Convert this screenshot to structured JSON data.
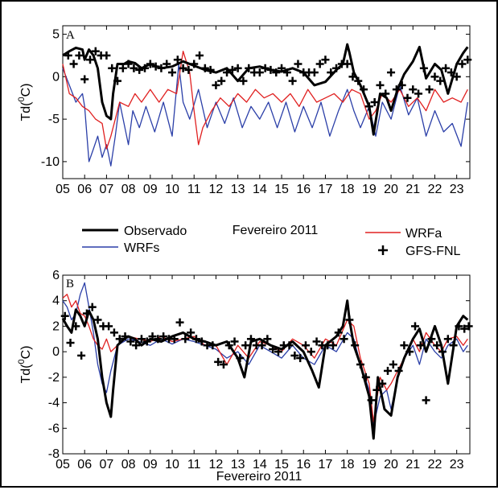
{
  "chart_data": [
    {
      "type": "line",
      "panel_label": "A",
      "xlabel": "Fevereiro 2011",
      "ylabel_main": "Td(",
      "ylabel_sup": "0",
      "ylabel_unit": "C)",
      "x_ticks": [
        "05",
        "06",
        "07",
        "08",
        "09",
        "10",
        "11",
        "12",
        "13",
        "14",
        "15",
        "16",
        "17",
        "18",
        "19",
        "20",
        "21",
        "22",
        "23"
      ],
      "xlim": [
        5,
        23.6
      ],
      "ylim": [
        -12,
        6
      ],
      "y_ticks": [
        5,
        0,
        -5,
        -10
      ],
      "y_tick_labels": [
        "5",
        "0",
        "-5",
        "-10"
      ],
      "series": [
        {
          "name": "Observado",
          "color": "#000000",
          "x": [
            5.0,
            5.3,
            5.6,
            5.9,
            6.0,
            6.2,
            6.4,
            6.6,
            6.8,
            7.0,
            7.2,
            7.3,
            7.5,
            7.8,
            8.0,
            8.3,
            8.6,
            9.0,
            9.5,
            10.0,
            10.5,
            11.0,
            11.5,
            12.0,
            12.5,
            13.0,
            13.5,
            14.0,
            14.5,
            15.0,
            15.5,
            16.0,
            16.5,
            17.0,
            17.5,
            17.8,
            18.0,
            18.1,
            18.3,
            18.6,
            19.0,
            19.2,
            19.5,
            19.8,
            20.0,
            20.3,
            20.6,
            21.0,
            21.3,
            21.6,
            22.0,
            22.3,
            22.6,
            23.0,
            23.3,
            23.5
          ],
          "y": [
            2.5,
            3.0,
            3.4,
            3.2,
            2.0,
            3.2,
            2.5,
            1.0,
            -3.0,
            -4.6,
            -5.0,
            -2.0,
            1.5,
            1.5,
            1.8,
            1.6,
            1.0,
            1.5,
            1.0,
            1.2,
            1.8,
            1.3,
            0.8,
            0.5,
            1.0,
            -0.5,
            1.0,
            1.2,
            0.8,
            0.6,
            1.0,
            0.5,
            -1.0,
            -0.6,
            0.8,
            1.5,
            3.8,
            2.8,
            0.5,
            -1.0,
            -3.5,
            -6.8,
            -2.0,
            -2.5,
            -4.0,
            -1.5,
            0.3,
            1.8,
            3.5,
            -0.2,
            1.5,
            0.8,
            -2.0,
            1.5,
            2.8,
            3.5
          ]
        },
        {
          "name": "WRFs",
          "color": "#2b3fa8",
          "x": [
            5.0,
            5.3,
            5.6,
            5.9,
            6.0,
            6.2,
            6.4,
            6.6,
            6.8,
            7.0,
            7.2,
            7.4,
            7.6,
            8.0,
            8.2,
            8.5,
            8.8,
            9.2,
            9.6,
            10.0,
            10.3,
            10.5,
            10.8,
            11.2,
            11.6,
            12.0,
            12.4,
            12.8,
            13.2,
            13.6,
            14.0,
            14.4,
            14.8,
            15.2,
            15.6,
            16.0,
            16.4,
            16.8,
            17.2,
            17.6,
            18.0,
            18.3,
            18.6,
            19.0,
            19.3,
            19.6,
            20.0,
            20.4,
            20.8,
            21.2,
            21.6,
            22.0,
            22.4,
            22.8,
            23.2,
            23.5
          ],
          "y": [
            1.0,
            -1.0,
            -3.0,
            -2.0,
            -3.5,
            -10.0,
            -8.5,
            -7.0,
            -9.5,
            -8.0,
            -10.5,
            -7.0,
            -3.0,
            -8.0,
            -4.0,
            -6.0,
            -3.5,
            -6.5,
            -3.0,
            -7.0,
            1.5,
            -3.0,
            -5.0,
            -1.5,
            -6.0,
            -3.0,
            -5.5,
            -2.5,
            -6.0,
            -3.5,
            -5.0,
            -3.0,
            -6.0,
            -3.0,
            -6.5,
            -3.5,
            -6.0,
            -3.0,
            -7.0,
            -4.0,
            -1.5,
            -4.0,
            -6.0,
            -3.5,
            -7.0,
            -3.0,
            -5.0,
            -1.0,
            -4.5,
            -2.5,
            -7.0,
            -4.0,
            -6.5,
            -5.5,
            -8.2,
            -3.0
          ]
        },
        {
          "name": "WRFa",
          "color": "#e02020",
          "x": [
            5.0,
            5.3,
            5.6,
            5.9,
            6.2,
            6.5,
            6.8,
            7.0,
            7.2,
            7.4,
            7.6,
            8.0,
            8.3,
            8.6,
            9.0,
            9.4,
            9.8,
            10.2,
            10.5,
            10.8,
            11.0,
            11.2,
            11.4,
            11.8,
            12.2,
            12.6,
            13.0,
            13.4,
            13.8,
            14.2,
            14.6,
            15.0,
            15.4,
            15.8,
            16.2,
            16.6,
            17.0,
            17.4,
            17.8,
            18.2,
            18.6,
            19.0,
            19.3,
            19.6,
            20.0,
            20.4,
            20.8,
            21.2,
            21.6,
            22.0,
            22.4,
            22.8,
            23.2,
            23.5
          ],
          "y": [
            1.5,
            -2.0,
            -2.5,
            -3.5,
            -4.0,
            -5.0,
            -5.5,
            -8.5,
            -7.0,
            -5.0,
            -3.0,
            -3.5,
            -2.0,
            -3.0,
            -1.5,
            -3.0,
            -1.5,
            -2.0,
            3.0,
            0.5,
            -4.0,
            -8.0,
            -6.0,
            -4.0,
            -2.5,
            -3.5,
            -2.0,
            -3.0,
            -1.5,
            -2.5,
            -2.0,
            -3.0,
            -2.0,
            -3.5,
            -1.5,
            -3.0,
            -2.5,
            -2.0,
            -3.0,
            -1.5,
            -2.0,
            -5.0,
            -4.0,
            -2.0,
            -3.0,
            -1.5,
            -3.5,
            -2.5,
            -4.0,
            -1.5,
            -3.0,
            -2.5,
            -3.0,
            -1.5
          ]
        },
        {
          "name": "GFS-FNL",
          "color": "#000000",
          "marker": "+",
          "x": [
            5.25,
            5.5,
            5.75,
            6.0,
            6.25,
            6.5,
            6.75,
            7.0,
            7.25,
            7.5,
            7.75,
            8.0,
            8.25,
            8.5,
            8.75,
            9.0,
            9.25,
            9.5,
            9.75,
            10.0,
            10.25,
            10.5,
            10.75,
            11.0,
            11.25,
            11.5,
            11.75,
            12.0,
            12.25,
            12.5,
            12.75,
            13.0,
            13.25,
            13.5,
            13.75,
            14.0,
            14.25,
            14.5,
            14.75,
            15.0,
            15.25,
            15.5,
            15.75,
            16.0,
            16.25,
            16.5,
            16.75,
            17.0,
            17.25,
            17.5,
            17.75,
            18.0,
            18.25,
            18.5,
            18.75,
            19.0,
            19.25,
            19.5,
            19.75,
            20.0,
            20.25,
            20.5,
            20.75,
            21.0,
            21.25,
            21.5,
            21.75,
            22.0,
            22.25,
            22.5,
            22.75,
            23.0,
            23.25,
            23.5
          ],
          "y": [
            2.5,
            1.5,
            2.5,
            -0.3,
            2.0,
            3.0,
            2.5,
            2.5,
            1.0,
            -0.5,
            1.0,
            1.5,
            1.0,
            0.8,
            1.0,
            1.5,
            1.2,
            1.0,
            1.5,
            0.5,
            2.0,
            1.0,
            0.8,
            1.5,
            2.5,
            1.0,
            0.8,
            -1.0,
            -0.5,
            0.5,
            0.8,
            1.0,
            -0.5,
            1.0,
            0.5,
            0.5,
            1.0,
            0.8,
            0.5,
            1.0,
            0.5,
            -0.5,
            1.5,
            0.5,
            0.5,
            0.5,
            1.5,
            2.0,
            0.5,
            1.0,
            1.5,
            1.5,
            0.0,
            -0.5,
            -1.5,
            -3.5,
            -3.0,
            -1.0,
            -2.0,
            0.5,
            -1.5,
            -1.0,
            -2.5,
            -1.5,
            -2.0,
            1.0,
            -1.5,
            0.0,
            -0.5,
            1.0,
            0.5,
            0.0,
            1.5,
            2.0
          ]
        }
      ]
    },
    {
      "type": "line",
      "panel_label": "B",
      "xlabel": "Fevereiro 2011",
      "ylabel_main": "Td(",
      "ylabel_sup": "0",
      "ylabel_unit": "C)",
      "x_ticks": [
        "05",
        "06",
        "07",
        "08",
        "09",
        "10",
        "11",
        "12",
        "13",
        "14",
        "15",
        "16",
        "17",
        "18",
        "19",
        "20",
        "21",
        "22",
        "23"
      ],
      "xlim": [
        5,
        23.6
      ],
      "ylim": [
        -8,
        6
      ],
      "y_ticks": [
        6,
        4,
        2,
        0,
        -2,
        -4,
        -6,
        -8
      ],
      "y_tick_labels": [
        "6",
        "4",
        "2",
        "0",
        "-2",
        "-4",
        "-6",
        "-8"
      ],
      "series": [
        {
          "name": "Observado",
          "color": "#000000",
          "x": [
            5.0,
            5.2,
            5.4,
            5.6,
            5.8,
            6.0,
            6.2,
            6.4,
            6.6,
            6.8,
            7.0,
            7.2,
            7.3,
            7.5,
            7.8,
            8.0,
            8.3,
            8.6,
            9.0,
            9.5,
            10.0,
            10.5,
            11.0,
            11.5,
            12.0,
            12.5,
            13.0,
            13.3,
            13.6,
            14.0,
            14.5,
            15.0,
            15.5,
            16.0,
            16.4,
            16.7,
            17.0,
            17.5,
            17.8,
            18.0,
            18.1,
            18.3,
            18.6,
            19.0,
            19.2,
            19.4,
            19.7,
            20.0,
            20.3,
            20.6,
            21.0,
            21.3,
            21.6,
            22.0,
            22.3,
            22.6,
            23.0,
            23.3,
            23.5
          ],
          "y": [
            2.6,
            2.0,
            1.5,
            3.3,
            2.8,
            2.0,
            3.2,
            2.5,
            1.0,
            -2.0,
            -4.0,
            -5.1,
            -3.0,
            0.5,
            1.0,
            1.2,
            1.0,
            0.5,
            1.0,
            0.8,
            1.2,
            1.5,
            1.0,
            0.8,
            0.5,
            0.8,
            -0.5,
            -2.0,
            0.8,
            1.0,
            0.5,
            0.2,
            0.8,
            0.0,
            -1.5,
            -2.8,
            0.5,
            1.2,
            2.0,
            4.0,
            2.5,
            0.5,
            -1.0,
            -3.5,
            -6.8,
            -2.0,
            -4.5,
            -5.0,
            -2.0,
            -0.5,
            1.0,
            1.8,
            0.0,
            2.0,
            0.5,
            -2.5,
            2.0,
            2.8,
            2.5
          ]
        },
        {
          "name": "WRFs",
          "color": "#2b3fa8",
          "x": [
            5.0,
            5.2,
            5.4,
            5.6,
            5.8,
            6.0,
            6.2,
            6.4,
            6.6,
            6.8,
            7.0,
            7.2,
            7.5,
            8.0,
            8.5,
            9.0,
            9.5,
            10.0,
            10.5,
            11.0,
            11.5,
            12.0,
            12.5,
            13.0,
            13.5,
            14.0,
            14.5,
            15.0,
            15.5,
            16.0,
            16.5,
            17.0,
            17.5,
            18.0,
            18.3,
            18.6,
            19.0,
            19.2,
            19.5,
            19.8,
            20.0,
            20.3,
            20.6,
            21.0,
            21.3,
            21.6,
            22.0,
            22.3,
            22.6,
            23.0,
            23.3,
            23.5
          ],
          "y": [
            4.0,
            3.5,
            2.5,
            3.0,
            4.5,
            5.4,
            3.5,
            1.5,
            -1.0,
            -2.5,
            -3.2,
            -1.5,
            0.5,
            1.0,
            0.8,
            0.5,
            1.0,
            0.6,
            1.0,
            0.8,
            0.5,
            0.2,
            -0.5,
            0.0,
            -1.0,
            0.5,
            0.0,
            -0.5,
            0.5,
            -0.5,
            -1.0,
            0.5,
            0.0,
            1.5,
            1.0,
            -1.0,
            -3.0,
            -5.8,
            -3.5,
            -3.0,
            -4.5,
            -2.0,
            -0.5,
            0.5,
            -1.0,
            1.0,
            0.0,
            -0.5,
            0.5,
            1.0,
            0.0,
            0.5
          ]
        },
        {
          "name": "WRFa",
          "color": "#e02020",
          "x": [
            5.0,
            5.2,
            5.4,
            5.6,
            5.8,
            6.0,
            6.2,
            6.4,
            6.6,
            6.8,
            7.0,
            7.2,
            7.5,
            8.0,
            8.5,
            9.0,
            9.5,
            10.0,
            10.5,
            11.0,
            11.5,
            12.0,
            12.5,
            13.0,
            13.5,
            14.0,
            14.5,
            15.0,
            15.5,
            16.0,
            16.5,
            17.0,
            17.5,
            18.0,
            18.3,
            18.6,
            19.0,
            19.2,
            19.5,
            19.8,
            20.0,
            20.3,
            20.6,
            21.0,
            21.3,
            21.6,
            22.0,
            22.3,
            22.6,
            23.0,
            23.3,
            23.5
          ],
          "y": [
            4.2,
            4.5,
            3.5,
            4.0,
            3.0,
            2.8,
            2.0,
            1.0,
            0.5,
            0.2,
            1.0,
            0.0,
            0.5,
            1.2,
            1.0,
            0.8,
            1.2,
            0.8,
            1.0,
            1.2,
            0.5,
            0.5,
            -1.0,
            0.5,
            -0.5,
            0.8,
            0.5,
            0.0,
            1.0,
            0.5,
            -0.5,
            1.0,
            0.5,
            2.5,
            2.0,
            -0.5,
            -2.5,
            -5.5,
            -2.0,
            -3.0,
            -2.5,
            -1.5,
            -0.5,
            1.0,
            0.0,
            1.5,
            0.5,
            0.0,
            1.0,
            1.2,
            0.5,
            1.0
          ]
        },
        {
          "name": "GFS-FNL",
          "color": "#000000",
          "marker": "+",
          "x": [
            5.1,
            5.35,
            5.6,
            5.85,
            6.1,
            6.35,
            6.6,
            6.85,
            7.1,
            7.35,
            7.6,
            7.85,
            8.1,
            8.35,
            8.6,
            8.85,
            9.1,
            9.35,
            9.6,
            9.85,
            10.1,
            10.35,
            10.6,
            10.85,
            11.1,
            11.35,
            11.6,
            11.85,
            12.1,
            12.35,
            12.6,
            12.85,
            13.1,
            13.35,
            13.6,
            13.85,
            14.1,
            14.35,
            14.6,
            14.85,
            15.1,
            15.35,
            15.6,
            15.85,
            16.1,
            16.35,
            16.6,
            16.85,
            17.1,
            17.35,
            17.6,
            17.85,
            18.1,
            18.35,
            18.6,
            18.85,
            19.1,
            19.35,
            19.6,
            19.85,
            20.1,
            20.35,
            20.6,
            20.85,
            21.1,
            21.35,
            21.6,
            21.85,
            22.1,
            22.35,
            22.6,
            22.85,
            23.1,
            23.35,
            23.55
          ],
          "y": [
            2.8,
            0.7,
            2.0,
            -0.3,
            3.0,
            3.5,
            2.5,
            2.0,
            2.0,
            1.5,
            1.0,
            1.2,
            0.8,
            0.5,
            1.0,
            0.8,
            1.2,
            1.0,
            1.2,
            1.0,
            1.0,
            2.3,
            1.0,
            1.5,
            1.0,
            0.8,
            0.5,
            0.5,
            -0.8,
            -1.0,
            0.5,
            0.8,
            -0.5,
            0.5,
            1.0,
            0.5,
            0.5,
            1.0,
            0.2,
            0.0,
            0.5,
            0.5,
            -0.3,
            -0.5,
            0.5,
            0.0,
            0.8,
            0.5,
            0.5,
            0.5,
            1.5,
            1.0,
            2.5,
            0.5,
            -1.0,
            -2.0,
            -3.8,
            -3.0,
            -2.5,
            -1.5,
            -1.0,
            -1.5,
            0.5,
            0.0,
            2.0,
            0.5,
            -3.8,
            1.0,
            0.5,
            0.0,
            1.0,
            0.5,
            2.0,
            1.8,
            2.0
          ]
        }
      ]
    }
  ],
  "legend": {
    "entries": [
      {
        "label": "Observado",
        "color": "#000000"
      },
      {
        "label": "WRFa",
        "color": "#e02020"
      },
      {
        "label": "WRFs",
        "color": "#2b3fa8"
      },
      {
        "label": "GFS-FNL",
        "color": "#000000",
        "marker": "+"
      }
    ]
  }
}
